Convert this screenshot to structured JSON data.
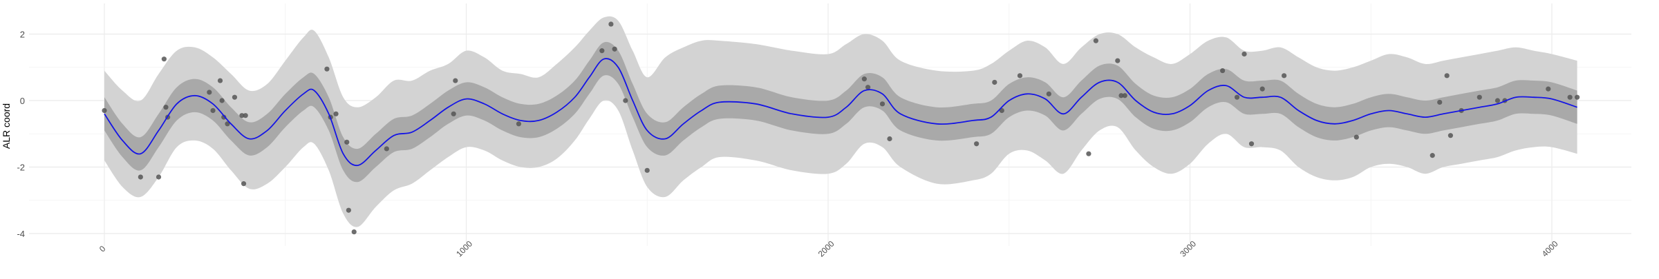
{
  "chart_data": {
    "type": "line",
    "title": "",
    "xlabel": "",
    "ylabel": "ALR coord",
    "xlim": [
      -100,
      4150
    ],
    "ylim": [
      -4.2,
      2.6
    ],
    "grid": true,
    "colors": {
      "mean_line": "#1414e6",
      "inner_band": "#a9a9a9",
      "outer_band": "#d3d3d3",
      "points": "#555555",
      "grid": "#ebebeb"
    },
    "x_ticks": [
      {
        "value": 0,
        "label": "0"
      },
      {
        "value": 1000,
        "label": "1000"
      },
      {
        "value": 2000,
        "label": "2000"
      },
      {
        "value": 3000,
        "label": "3000"
      },
      {
        "value": 4000,
        "label": "4000"
      }
    ],
    "y_ticks": [
      {
        "value": 2,
        "label": "2"
      },
      {
        "value": 0,
        "label": "0"
      },
      {
        "value": -2,
        "label": "-2"
      },
      {
        "value": -4,
        "label": "-4"
      }
    ],
    "series": [
      {
        "kind": "mean",
        "x": [
          0,
          50,
          100,
          150,
          200,
          250,
          300,
          350,
          400,
          450,
          500,
          550,
          580,
          620,
          660,
          700,
          750,
          800,
          850,
          900,
          950,
          1000,
          1050,
          1100,
          1150,
          1200,
          1250,
          1300,
          1340,
          1380,
          1420,
          1460,
          1500,
          1550,
          1600,
          1650,
          1700,
          1800,
          1900,
          2000,
          2050,
          2100,
          2150,
          2200,
          2300,
          2400,
          2450,
          2500,
          2550,
          2600,
          2650,
          2700,
          2750,
          2800,
          2850,
          2900,
          2950,
          3000,
          3050,
          3100,
          3150,
          3200,
          3250,
          3300,
          3350,
          3400,
          3450,
          3500,
          3550,
          3600,
          3650,
          3700,
          3750,
          3800,
          3850,
          3900,
          3950,
          4000,
          4070
        ],
        "y": [
          -0.4,
          -1.2,
          -1.6,
          -0.9,
          -0.1,
          0.15,
          -0.1,
          -0.7,
          -1.15,
          -0.9,
          -0.3,
          0.2,
          0.3,
          -0.4,
          -1.6,
          -1.95,
          -1.5,
          -1.05,
          -0.95,
          -0.6,
          -0.2,
          0.05,
          -0.1,
          -0.4,
          -0.6,
          -0.6,
          -0.35,
          0.1,
          0.7,
          1.25,
          1.0,
          0.0,
          -0.9,
          -1.15,
          -0.7,
          -0.3,
          -0.05,
          -0.1,
          -0.4,
          -0.5,
          -0.2,
          0.3,
          0.2,
          -0.4,
          -0.7,
          -0.6,
          -0.5,
          0.0,
          0.2,
          0.05,
          -0.4,
          0.1,
          0.55,
          0.55,
          0.0,
          -0.35,
          -0.4,
          -0.15,
          0.3,
          0.45,
          0.1,
          0.1,
          0.1,
          -0.3,
          -0.6,
          -0.7,
          -0.6,
          -0.4,
          -0.3,
          -0.4,
          -0.5,
          -0.4,
          -0.3,
          -0.2,
          -0.1,
          0.1,
          0.1,
          0.05,
          -0.2
        ]
      },
      {
        "kind": "inner_band",
        "x": [
          0,
          50,
          100,
          150,
          200,
          250,
          300,
          350,
          400,
          450,
          500,
          550,
          580,
          620,
          660,
          700,
          750,
          800,
          850,
          900,
          950,
          1000,
          1050,
          1100,
          1150,
          1200,
          1250,
          1300,
          1340,
          1380,
          1420,
          1460,
          1500,
          1550,
          1600,
          1650,
          1700,
          1800,
          1900,
          2000,
          2050,
          2100,
          2150,
          2200,
          2300,
          2400,
          2450,
          2500,
          2550,
          2600,
          2650,
          2700,
          2750,
          2800,
          2850,
          2900,
          2950,
          3000,
          3050,
          3100,
          3150,
          3200,
          3250,
          3300,
          3350,
          3400,
          3450,
          3500,
          3550,
          3600,
          3650,
          3700,
          3750,
          3800,
          3850,
          3900,
          3950,
          4000,
          4070
        ],
        "lower": [
          -0.9,
          -1.7,
          -2.1,
          -1.4,
          -0.6,
          -0.35,
          -0.6,
          -1.2,
          -1.65,
          -1.4,
          -0.8,
          -0.3,
          -0.2,
          -0.9,
          -2.1,
          -2.45,
          -2.0,
          -1.55,
          -1.45,
          -1.1,
          -0.7,
          -0.45,
          -0.6,
          -0.9,
          -1.1,
          -1.1,
          -0.85,
          -0.4,
          0.2,
          0.75,
          0.5,
          -0.5,
          -1.4,
          -1.65,
          -1.2,
          -0.8,
          -0.55,
          -0.6,
          -0.9,
          -1.0,
          -0.7,
          -0.2,
          -0.3,
          -0.9,
          -1.2,
          -1.1,
          -1.0,
          -0.5,
          -0.3,
          -0.45,
          -0.9,
          -0.4,
          0.05,
          0.05,
          -0.5,
          -0.85,
          -0.9,
          -0.65,
          -0.2,
          -0.05,
          -0.4,
          -0.4,
          -0.4,
          -0.8,
          -1.1,
          -1.2,
          -1.1,
          -0.9,
          -0.8,
          -0.9,
          -1.0,
          -0.9,
          -0.8,
          -0.7,
          -0.6,
          -0.4,
          -0.4,
          -0.45,
          -0.7
        ],
        "upper": [
          0.1,
          -0.7,
          -1.1,
          -0.4,
          0.4,
          0.65,
          0.4,
          -0.2,
          -0.65,
          -0.4,
          0.2,
          0.7,
          0.8,
          0.1,
          -1.1,
          -1.45,
          -1.0,
          -0.55,
          -0.45,
          -0.1,
          0.3,
          0.55,
          0.4,
          0.1,
          -0.1,
          -0.1,
          0.15,
          0.6,
          1.2,
          1.75,
          1.5,
          0.5,
          -0.4,
          -0.65,
          -0.2,
          0.2,
          0.45,
          0.4,
          0.1,
          0.0,
          0.3,
          0.8,
          0.7,
          0.1,
          -0.2,
          -0.1,
          0.0,
          0.5,
          0.7,
          0.55,
          0.1,
          0.6,
          1.05,
          1.05,
          0.5,
          0.15,
          0.1,
          0.35,
          0.8,
          0.95,
          0.6,
          0.6,
          0.6,
          0.2,
          -0.1,
          -0.2,
          -0.1,
          0.1,
          0.2,
          0.1,
          0.0,
          0.1,
          0.2,
          0.3,
          0.4,
          0.6,
          0.6,
          0.55,
          0.3
        ]
      },
      {
        "kind": "outer_band",
        "x": [
          0,
          50,
          100,
          150,
          200,
          250,
          300,
          350,
          400,
          450,
          500,
          550,
          580,
          620,
          660,
          700,
          750,
          800,
          850,
          900,
          950,
          1000,
          1050,
          1100,
          1150,
          1200,
          1250,
          1300,
          1340,
          1380,
          1420,
          1460,
          1500,
          1550,
          1600,
          1650,
          1700,
          1800,
          1900,
          2000,
          2050,
          2100,
          2150,
          2200,
          2300,
          2400,
          2450,
          2500,
          2550,
          2600,
          2650,
          2700,
          2750,
          2800,
          2850,
          2900,
          2950,
          3000,
          3050,
          3100,
          3150,
          3200,
          3250,
          3300,
          3350,
          3400,
          3450,
          3500,
          3550,
          3600,
          3650,
          3700,
          3750,
          3800,
          3850,
          3900,
          3950,
          4000,
          4070
        ],
        "lower": [
          -1.8,
          -2.6,
          -2.9,
          -2.3,
          -1.4,
          -1.2,
          -1.45,
          -2.1,
          -2.65,
          -2.5,
          -2.0,
          -1.4,
          -1.3,
          -2.1,
          -3.4,
          -3.8,
          -3.2,
          -2.7,
          -2.5,
          -2.1,
          -1.7,
          -1.4,
          -1.5,
          -1.8,
          -2.0,
          -2.0,
          -1.75,
          -1.2,
          -0.55,
          0.0,
          -0.3,
          -1.5,
          -2.6,
          -2.9,
          -2.4,
          -2.0,
          -1.7,
          -1.8,
          -2.1,
          -2.2,
          -1.9,
          -1.3,
          -1.4,
          -2.0,
          -2.5,
          -2.4,
          -2.2,
          -1.6,
          -1.5,
          -1.8,
          -2.2,
          -1.5,
          -0.9,
          -0.8,
          -1.5,
          -2.0,
          -2.2,
          -1.9,
          -1.3,
          -1.0,
          -1.4,
          -1.4,
          -1.5,
          -2.0,
          -2.3,
          -2.4,
          -2.3,
          -2.0,
          -1.9,
          -2.0,
          -2.2,
          -2.0,
          -1.9,
          -1.8,
          -1.7,
          -1.5,
          -1.4,
          -1.4,
          -1.6
        ],
        "upper": [
          0.9,
          0.3,
          0.0,
          0.8,
          1.5,
          1.6,
          1.3,
          0.8,
          0.3,
          0.5,
          1.2,
          1.9,
          2.1,
          1.3,
          0.1,
          -0.2,
          0.1,
          0.6,
          0.6,
          0.9,
          1.1,
          1.5,
          1.3,
          0.9,
          0.8,
          0.7,
          1.1,
          1.6,
          2.1,
          2.5,
          2.4,
          1.5,
          0.7,
          1.3,
          1.6,
          1.8,
          1.8,
          1.7,
          1.5,
          1.4,
          1.7,
          2.0,
          1.8,
          1.2,
          0.9,
          0.9,
          1.1,
          1.5,
          1.8,
          1.6,
          1.1,
          1.6,
          2.0,
          2.0,
          1.6,
          1.3,
          1.1,
          1.4,
          1.8,
          1.9,
          1.5,
          1.5,
          1.6,
          1.3,
          1.0,
          0.9,
          1.0,
          1.2,
          1.4,
          1.3,
          1.1,
          1.2,
          1.3,
          1.4,
          1.5,
          1.6,
          1.5,
          1.4,
          1.2
        ]
      },
      {
        "kind": "points",
        "x": [
          0,
          100,
          150,
          165,
          170,
          175,
          290,
          300,
          320,
          325,
          330,
          340,
          360,
          380,
          385,
          390,
          615,
          625,
          640,
          670,
          675,
          690,
          780,
          965,
          970,
          1145,
          1375,
          1400,
          1410,
          1440,
          1500,
          2100,
          2110,
          2150,
          2170,
          2410,
          2460,
          2480,
          2530,
          2610,
          2720,
          2740,
          2800,
          2810,
          2820,
          3090,
          3130,
          3150,
          3170,
          3200,
          3260,
          3460,
          3670,
          3690,
          3710,
          3720,
          3750,
          3800,
          3850,
          3870,
          3990,
          4050,
          4070
        ],
        "y": [
          -0.3,
          -2.3,
          -2.3,
          1.25,
          -0.2,
          -0.5,
          0.25,
          -0.3,
          0.6,
          0.0,
          -0.5,
          -0.7,
          0.1,
          -0.45,
          -2.5,
          -0.45,
          0.95,
          -0.5,
          -0.4,
          -1.25,
          -3.3,
          -3.95,
          -1.45,
          -0.4,
          0.6,
          -0.7,
          1.5,
          2.3,
          1.55,
          0.0,
          -2.1,
          0.65,
          0.4,
          -0.1,
          -1.15,
          -1.3,
          0.55,
          -0.3,
          0.75,
          0.2,
          -1.6,
          1.8,
          1.2,
          0.15,
          0.15,
          0.9,
          0.1,
          1.4,
          -1.3,
          0.35,
          0.75,
          -1.1,
          -1.65,
          -0.05,
          0.75,
          -1.05,
          -0.3,
          0.1,
          0.0,
          0.0,
          0.35,
          0.1,
          0.1
        ]
      }
    ]
  }
}
